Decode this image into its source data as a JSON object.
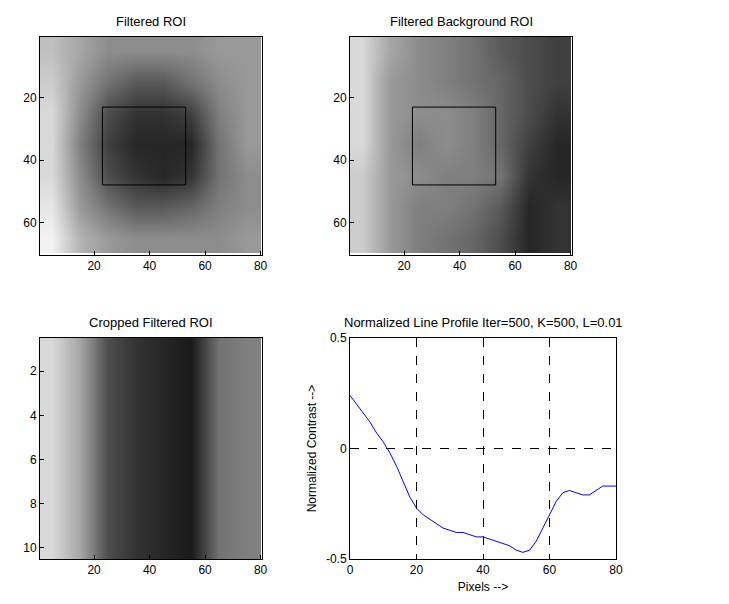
{
  "chart_data": [
    {
      "type": "heatmap",
      "title": "Filtered ROI",
      "color": "gray",
      "x": [
        5,
        15,
        25,
        35,
        45,
        55,
        65,
        75
      ],
      "y": [
        5,
        15,
        25,
        35,
        45,
        55,
        65
      ],
      "z": [
        [
          0.75,
          0.65,
          0.55,
          0.55,
          0.55,
          0.55,
          0.6,
          0.6
        ],
        [
          0.8,
          0.6,
          0.45,
          0.35,
          0.35,
          0.45,
          0.55,
          0.6
        ],
        [
          0.85,
          0.55,
          0.3,
          0.2,
          0.2,
          0.25,
          0.5,
          0.6
        ],
        [
          0.85,
          0.5,
          0.25,
          0.15,
          0.15,
          0.15,
          0.45,
          0.6
        ],
        [
          0.85,
          0.55,
          0.3,
          0.2,
          0.15,
          0.2,
          0.45,
          0.55
        ],
        [
          0.9,
          0.6,
          0.45,
          0.35,
          0.35,
          0.4,
          0.5,
          0.55
        ],
        [
          0.95,
          0.7,
          0.6,
          0.55,
          0.55,
          0.55,
          0.55,
          0.6
        ]
      ],
      "zlim": [
        0,
        1
      ],
      "box": {
        "x": [
          23,
          53
        ],
        "y": [
          23,
          48
        ]
      },
      "xlim": [
        0.5,
        80.5
      ],
      "ylim": [
        70.5,
        0.5
      ],
      "xticks": [
        20,
        40,
        60,
        80
      ],
      "yticks": [
        20,
        40,
        60
      ]
    },
    {
      "type": "heatmap",
      "title": "Filtered Background ROI",
      "color": "gray",
      "x": [
        5,
        15,
        25,
        35,
        45,
        55,
        65,
        75
      ],
      "y": [
        5,
        15,
        25,
        35,
        45,
        55,
        65
      ],
      "z": [
        [
          0.85,
          0.65,
          0.55,
          0.5,
          0.45,
          0.35,
          0.3,
          0.25
        ],
        [
          0.85,
          0.6,
          0.55,
          0.5,
          0.45,
          0.4,
          0.3,
          0.25
        ],
        [
          0.85,
          0.6,
          0.55,
          0.55,
          0.5,
          0.4,
          0.3,
          0.2
        ],
        [
          0.85,
          0.6,
          0.5,
          0.55,
          0.5,
          0.4,
          0.25,
          0.15
        ],
        [
          0.8,
          0.6,
          0.55,
          0.5,
          0.5,
          0.45,
          0.2,
          0.15
        ],
        [
          0.8,
          0.6,
          0.5,
          0.5,
          0.45,
          0.35,
          0.15,
          0.2
        ],
        [
          0.8,
          0.6,
          0.5,
          0.45,
          0.4,
          0.3,
          0.15,
          0.2
        ]
      ],
      "zlim": [
        0,
        1
      ],
      "box": {
        "x": [
          23,
          53
        ],
        "y": [
          23,
          48
        ]
      },
      "xlim": [
        0.5,
        80.5
      ],
      "ylim": [
        70.5,
        0.5
      ],
      "xticks": [
        20,
        40,
        60,
        80
      ],
      "yticks": [
        20,
        40,
        60
      ]
    },
    {
      "type": "heatmap",
      "title": "Cropped Filtered ROI",
      "color": "gray",
      "x": [
        5,
        15,
        25,
        35,
        45,
        55,
        65,
        75
      ],
      "y": [
        3,
        8
      ],
      "z": [
        [
          0.85,
          0.65,
          0.3,
          0.2,
          0.15,
          0.1,
          0.45,
          0.5
        ],
        [
          0.85,
          0.65,
          0.3,
          0.2,
          0.15,
          0.1,
          0.45,
          0.5
        ]
      ],
      "zlim": [
        0,
        1
      ],
      "xlim": [
        0.5,
        80.5
      ],
      "ylim": [
        10.5,
        0.5
      ],
      "xticks": [
        20,
        40,
        60,
        80
      ],
      "yticks": [
        2,
        4,
        6,
        8,
        10
      ]
    },
    {
      "type": "line",
      "title": "Normalized Line Profile Iter=500, K=500, L=0.01",
      "x_label": "Pixels -->",
      "y_label": "Normalized Contrast -->",
      "color": "#0000ff",
      "grid": true,
      "x": [
        0,
        2,
        4,
        6,
        8,
        10,
        12,
        14,
        16,
        18,
        20,
        22,
        24,
        26,
        28,
        30,
        32,
        34,
        36,
        38,
        40,
        42,
        44,
        46,
        48,
        50,
        52,
        54,
        56,
        58,
        60,
        62,
        64,
        66,
        68,
        70,
        72,
        74,
        76,
        78,
        80
      ],
      "values": [
        0.24,
        0.2,
        0.16,
        0.12,
        0.07,
        0.03,
        -0.02,
        -0.08,
        -0.15,
        -0.22,
        -0.27,
        -0.3,
        -0.32,
        -0.34,
        -0.36,
        -0.37,
        -0.38,
        -0.38,
        -0.39,
        -0.4,
        -0.4,
        -0.41,
        -0.42,
        -0.43,
        -0.44,
        -0.46,
        -0.47,
        -0.46,
        -0.42,
        -0.36,
        -0.3,
        -0.24,
        -0.2,
        -0.19,
        -0.2,
        -0.21,
        -0.21,
        -0.19,
        -0.17,
        -0.17,
        -0.17
      ],
      "xlim": [
        0,
        80
      ],
      "ylim": [
        -0.5,
        0.5
      ],
      "xticks": [
        0,
        20,
        40,
        60,
        80
      ],
      "yticks": [
        -0.5,
        0,
        0.5
      ]
    }
  ]
}
